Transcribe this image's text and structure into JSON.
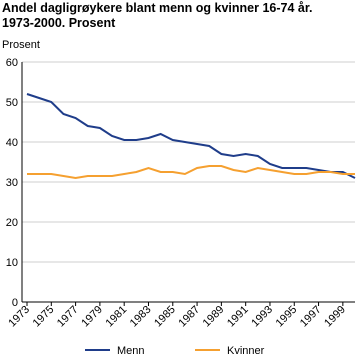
{
  "chart_data": {
    "type": "line",
    "title": "Andel dagligrøykere blant menn og kvinner 16-74 år.",
    "subtitle": "1973-2000. Prosent",
    "y_label": "Prosent",
    "x": [
      1973,
      1974,
      1975,
      1976,
      1977,
      1978,
      1979,
      1980,
      1981,
      1982,
      1983,
      1984,
      1985,
      1986,
      1987,
      1988,
      1989,
      1990,
      1991,
      1992,
      1993,
      1994,
      1995,
      1996,
      1997,
      1998,
      1999,
      2000
    ],
    "xlim": [
      1973,
      2000
    ],
    "xticks": [
      1973,
      1975,
      1977,
      1979,
      1981,
      1983,
      1985,
      1987,
      1989,
      1991,
      1993,
      1995,
      1997,
      1999
    ],
    "ylim": [
      0,
      60
    ],
    "yticks": [
      0,
      10,
      20,
      30,
      40,
      50,
      60
    ],
    "grid": true,
    "series": [
      {
        "name": "Menn",
        "color": "#1f3d8a",
        "values": [
          52,
          51,
          50,
          47,
          46,
          44,
          43.5,
          41.5,
          40.5,
          40.5,
          41,
          42,
          40.5,
          40,
          39.5,
          39,
          37,
          36.5,
          37,
          36.5,
          34.5,
          33.5,
          33.5,
          33.5,
          33,
          32.5,
          32.5,
          31
        ]
      },
      {
        "name": "Kvinner",
        "color": "#f5a030",
        "values": [
          32,
          32,
          32,
          31.5,
          31,
          31.5,
          31.5,
          31.5,
          32,
          32.5,
          33.5,
          32.5,
          32.5,
          32,
          33.5,
          34,
          34,
          33,
          32.5,
          33.5,
          33,
          32.5,
          32,
          32,
          32.5,
          32.5,
          32,
          32
        ]
      }
    ]
  }
}
